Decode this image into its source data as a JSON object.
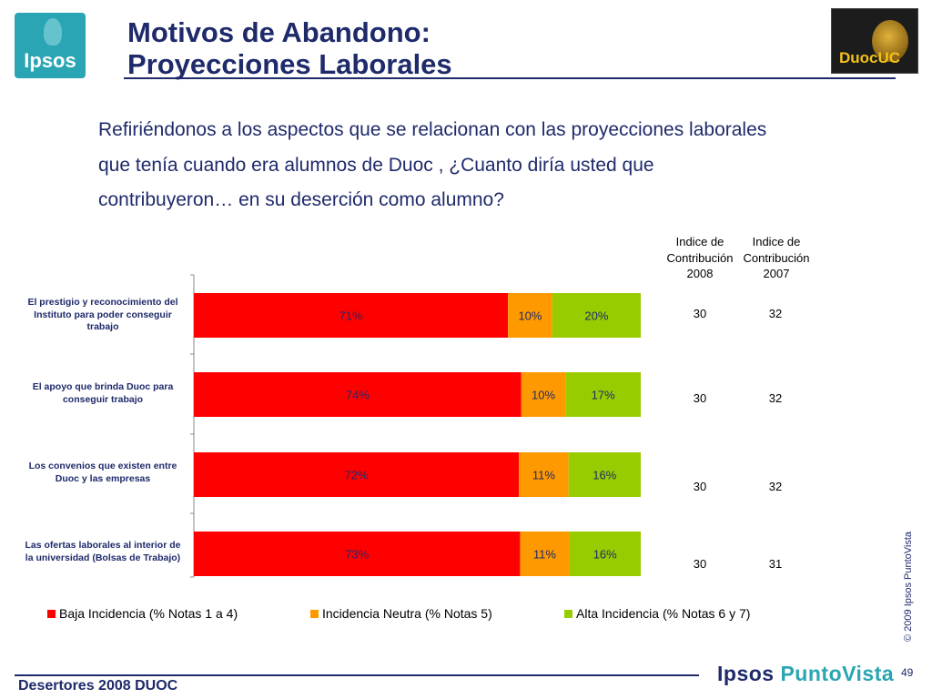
{
  "header": {
    "title_line1": "Motivos de Abandono:",
    "title_line2": "Proyecciones Laborales",
    "ipsos_logo_text": "Ipsos",
    "duoc_logo_text": "DuocUC"
  },
  "question": {
    "line1": "Refiriéndonos a los aspectos que se relacionan con las proyecciones laborales",
    "line2": "que tenía cuando era alumnos de Duoc , ¿Cuanto diría usted que",
    "line3": "contribuyeron… en su deserción como alumno?"
  },
  "index_headers": {
    "col2008": [
      "Indice de",
      "Contribución",
      "2008"
    ],
    "col2007": [
      "Indice de",
      "Contribución",
      "2007"
    ]
  },
  "chart_data": {
    "type": "bar",
    "orientation": "horizontal",
    "stacked": true,
    "categories": [
      [
        "El prestigio y reconocimiento del",
        "Instituto para poder conseguir",
        "trabajo"
      ],
      [
        "El apoyo que brinda Duoc para",
        "conseguir trabajo"
      ],
      [
        "Los convenios que existen entre",
        "Duoc y las empresas"
      ],
      [
        "Las ofertas laborales al interior de",
        "la universidad (Bolsas de Trabajo)"
      ]
    ],
    "series": [
      {
        "name": "Baja Incidencia (% Notas 1 a 4)",
        "color": "#ff0000",
        "values": [
          71,
          74,
          72,
          73
        ],
        "labels": [
          "71%",
          "74%",
          "72%",
          "73%"
        ]
      },
      {
        "name": "Incidencia Neutra (% Notas 5)",
        "color": "#ff9900",
        "values": [
          10,
          10,
          11,
          11
        ],
        "labels": [
          "10%",
          "10%",
          "11%",
          "11%"
        ]
      },
      {
        "name": "Alta Incidencia (% Notas 6 y 7)",
        "color": "#99cc00",
        "values": [
          20,
          17,
          16,
          16
        ],
        "labels": [
          "20%",
          "17%",
          "16%",
          "16%"
        ]
      }
    ],
    "index_2008": [
      30,
      30,
      30,
      30
    ],
    "index_2007": [
      32,
      32,
      32,
      31
    ],
    "legend_position": "bottom"
  },
  "footer": {
    "left_text": "Desertores 2008 DUOC",
    "brand_part1": "Ipsos ",
    "brand_part2": "PuntoVista",
    "page_number": "49",
    "copyright": "© 2009 Ipsos PuntoVista"
  }
}
